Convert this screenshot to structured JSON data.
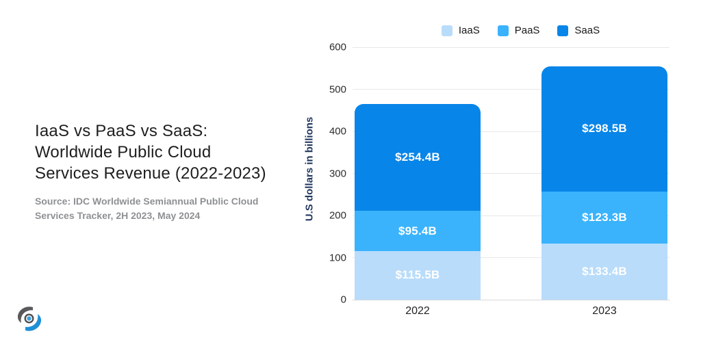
{
  "header": {
    "title_lines": [
      "IaaS vs PaaS vs SaaS:",
      "Worldwide Public Cloud",
      "Services Revenue (2022-2023)"
    ],
    "source_lines": [
      "Source: IDC Worldwide Semiannual Public Cloud",
      "Services Tracker, 2H 2023, May 2024"
    ]
  },
  "logo": {
    "name": "brand-logo",
    "gray": "#58595d",
    "blue": "#1e8fd5",
    "eye_outer": "#4e4f52",
    "eye_inner": "#3fa0dc"
  },
  "chart_data": {
    "type": "bar",
    "stacked": true,
    "title": "",
    "ylabel": "U.S dollars in billions",
    "xlabel": "",
    "ylim": [
      0,
      600
    ],
    "yticks": [
      0,
      100,
      200,
      300,
      400,
      500,
      600
    ],
    "grid": true,
    "legend_position": "top",
    "categories": [
      "2022",
      "2023"
    ],
    "series": [
      {
        "name": "IaaS",
        "color": "#b9dcfb",
        "values": [
          115.5,
          133.4
        ],
        "labels": [
          "$115.5B",
          "$133.4B"
        ]
      },
      {
        "name": "PaaS",
        "color": "#3ab3fc",
        "values": [
          95.4,
          123.3
        ],
        "labels": [
          "$95.4B",
          "$123.3B"
        ]
      },
      {
        "name": "SaaS",
        "color": "#0885e8",
        "values": [
          254.4,
          298.5
        ],
        "labels": [
          "$254.4B",
          "$298.5B"
        ]
      }
    ],
    "totals": [
      465.3,
      555.2
    ]
  }
}
